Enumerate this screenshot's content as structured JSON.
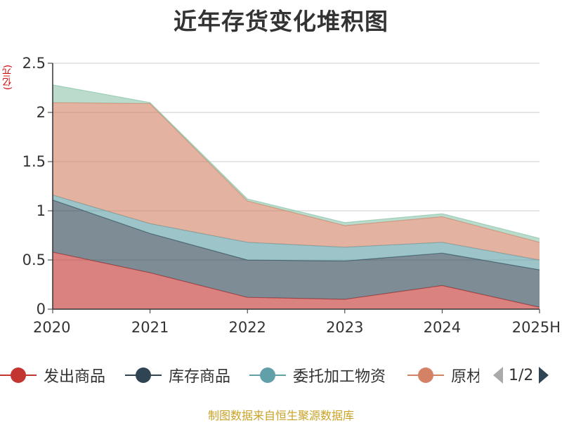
{
  "chart_data": {
    "type": "area",
    "stacked": true,
    "title": "近年存货变化堆积图",
    "unit": "(亿元)",
    "categories": [
      "2020",
      "2021",
      "2022",
      "2023",
      "2024",
      "2025H"
    ],
    "ylim": [
      0,
      2.5
    ],
    "yticks": [
      "0",
      "0.5",
      "1",
      "1.5",
      "2",
      "2.5"
    ],
    "grid": true,
    "legend_position": "bottom",
    "series": [
      {
        "name": "发出商品",
        "color": "#c23531",
        "values": [
          0.58,
          0.37,
          0.12,
          0.1,
          0.24,
          0.02
        ]
      },
      {
        "name": "库存商品",
        "color": "#2f4554",
        "values": [
          0.53,
          0.4,
          0.38,
          0.39,
          0.33,
          0.38
        ]
      },
      {
        "name": "委托加工物资",
        "color": "#61a0a8",
        "values": [
          0.05,
          0.1,
          0.18,
          0.14,
          0.11,
          0.1
        ]
      },
      {
        "name": "原材料",
        "color": "#d48265",
        "values": [
          0.94,
          1.22,
          0.42,
          0.22,
          0.26,
          0.18
        ]
      },
      {
        "name": "",
        "color": "#91c7ae",
        "values": [
          0.18,
          0.01,
          0.02,
          0.03,
          0.03,
          0.04
        ]
      }
    ]
  },
  "legend": {
    "items": [
      {
        "label": "发出商品",
        "color": "#c23531"
      },
      {
        "label": "库存商品",
        "color": "#2f4554"
      },
      {
        "label": "委托加工物资",
        "color": "#61a0a8"
      },
      {
        "label": "原材料",
        "color": "#d48265"
      }
    ],
    "page_text": "1/2"
  },
  "source_text": "制图数据来自恒生聚源数据库"
}
